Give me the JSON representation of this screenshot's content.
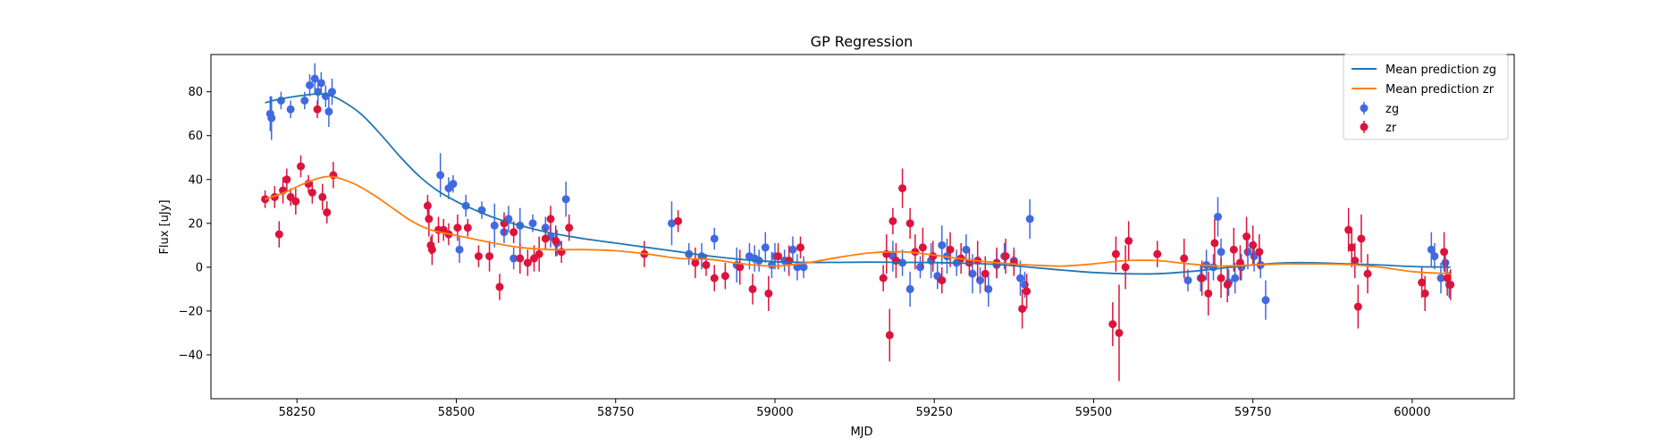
{
  "chart_data": {
    "type": "scatter",
    "title": "GP Regression",
    "xlabel": "MJD",
    "ylabel": "Flux [uJy]",
    "xlim": [
      58115,
      60160
    ],
    "ylim": [
      -60,
      97
    ],
    "xticks": [
      58250,
      58500,
      58750,
      59000,
      59250,
      59500,
      59750,
      60000
    ],
    "yticks": [
      -40,
      -20,
      0,
      20,
      40,
      60,
      80
    ],
    "grid": false,
    "legend_position": "top-right",
    "legend": [
      "Mean prediction zg",
      "Mean prediction zr",
      "zg",
      "zr"
    ],
    "colors": {
      "zg_line": "#1f77b4",
      "zr_line": "#ff7f0e",
      "zg_points": "#4169e1",
      "zr_points": "#dc143c"
    },
    "lines": [
      {
        "name": "Mean prediction zg",
        "color": "#1f77b4",
        "x": [
          58200,
          58220,
          58250,
          58280,
          58300,
          58320,
          58350,
          58380,
          58410,
          58440,
          58470,
          58500,
          58530,
          58560,
          58600,
          58650,
          58700,
          58750,
          58800,
          58850,
          58900,
          58950,
          59000,
          59050,
          59100,
          59150,
          59200,
          59250,
          59300,
          59350,
          59400,
          59450,
          59500,
          59550,
          59600,
          59650,
          59700,
          59750,
          59800,
          59850,
          59900,
          59950,
          60000,
          60060
        ],
        "y": [
          75,
          76.5,
          78,
          79,
          78.5,
          76,
          70,
          61,
          51,
          42,
          35,
          30,
          26,
          22.5,
          19,
          15.5,
          13,
          11,
          9,
          7,
          5,
          3.5,
          2.5,
          2.2,
          2.2,
          2.3,
          2.2,
          2.1,
          1.8,
          1.2,
          0,
          -1.3,
          -2.4,
          -3,
          -3,
          -2,
          -0.5,
          1,
          2,
          2,
          1.5,
          1,
          0.3,
          0
        ]
      },
      {
        "name": "Mean prediction zr",
        "color": "#ff7f0e",
        "x": [
          58200,
          58230,
          58260,
          58290,
          58310,
          58340,
          58370,
          58400,
          58430,
          58460,
          58500,
          58550,
          58600,
          58650,
          58700,
          58750,
          58800,
          58850,
          58900,
          58950,
          59000,
          59050,
          59100,
          59150,
          59200,
          59250,
          59300,
          59350,
          59400,
          59450,
          59500,
          59550,
          59600,
          59650,
          59700,
          59750,
          59800,
          59850,
          59900,
          59950,
          60000,
          60060
        ],
        "y": [
          31,
          34,
          38,
          41,
          41,
          38,
          33,
          27,
          21,
          17,
          14.5,
          11.5,
          9,
          8,
          8,
          7.5,
          6,
          4,
          3.5,
          1.5,
          0.5,
          2,
          4.5,
          6.5,
          7,
          5.5,
          3.5,
          2,
          1,
          0.5,
          1.5,
          3,
          3,
          1.5,
          0.5,
          1,
          1.5,
          1.5,
          1.2,
          0,
          -2,
          -3
        ]
      }
    ],
    "series": [
      {
        "name": "zg",
        "color": "#4169e1",
        "x": [
          58208,
          58210,
          58225,
          58240,
          58262,
          58270,
          58278,
          58283,
          58288,
          58295,
          58300,
          58305,
          58475,
          58488,
          58495,
          58505,
          58515,
          58540,
          58560,
          58575,
          58582,
          58590,
          58600,
          58620,
          58640,
          58648,
          58658,
          58672,
          58838,
          58865,
          58885,
          58905,
          58940,
          58960,
          58968,
          58975,
          58985,
          58995,
          59000,
          59015,
          59028,
          59035,
          59045,
          59185,
          59200,
          59212,
          59228,
          59245,
          59255,
          59262,
          59270,
          59285,
          59300,
          59310,
          59322,
          59335,
          59348,
          59360,
          59375,
          59385,
          59392,
          59400,
          59648,
          59668,
          59677,
          59688,
          59695,
          59700,
          59712,
          59722,
          59732,
          59742,
          59752,
          59762,
          59770,
          60030,
          60035,
          60045,
          60052,
          60058
        ],
        "y": [
          70,
          68,
          76,
          72,
          76,
          83,
          86,
          80,
          84,
          78,
          71,
          80,
          42,
          36,
          38,
          8,
          28,
          26,
          19,
          16,
          22,
          4,
          19,
          20,
          18,
          14,
          11,
          31,
          20,
          6,
          5,
          13,
          1,
          5,
          4,
          3,
          9,
          1,
          5,
          3,
          8,
          0,
          0,
          5,
          2,
          -10,
          0,
          3,
          -4,
          10,
          5,
          2,
          8,
          -3,
          -6,
          -10,
          1,
          5,
          3,
          -5,
          -8,
          22,
          -6,
          -5,
          1,
          0,
          23,
          7,
          -7,
          -5,
          0,
          7,
          5,
          1,
          -15,
          8,
          5,
          -5,
          2,
          -8
        ],
        "err": [
          8,
          10,
          4,
          4,
          4,
          5,
          7,
          6,
          5,
          5,
          7,
          6,
          10,
          5,
          4,
          6,
          5,
          4,
          10,
          5,
          6,
          5,
          8,
          4,
          5,
          5,
          6,
          8,
          10,
          5,
          6,
          5,
          8,
          6,
          6,
          5,
          7,
          6,
          6,
          5,
          6,
          6,
          5,
          7,
          6,
          8,
          5,
          8,
          6,
          9,
          8,
          6,
          7,
          9,
          6,
          8,
          6,
          6,
          6,
          8,
          6,
          9,
          5,
          6,
          7,
          6,
          9,
          6,
          6,
          7,
          6,
          8,
          7,
          6,
          9,
          8,
          6,
          7,
          5,
          6
        ]
      },
      {
        "name": "zr",
        "color": "#dc143c",
        "x": [
          58200,
          58215,
          58222,
          58228,
          58234,
          58240,
          58248,
          58256,
          58268,
          58274,
          58282,
          58290,
          58297,
          58307,
          58455,
          58457,
          58460,
          58462,
          58472,
          58480,
          58488,
          58502,
          58518,
          58535,
          58552,
          58568,
          58575,
          58590,
          58600,
          58612,
          58622,
          58630,
          58640,
          58648,
          58656,
          58665,
          58677,
          58795,
          58848,
          58875,
          58892,
          58905,
          58922,
          58945,
          58965,
          58990,
          59005,
          59022,
          59040,
          59170,
          59175,
          59180,
          59185,
          59190,
          59200,
          59212,
          59220,
          59232,
          59248,
          59262,
          59275,
          59292,
          59305,
          59318,
          59330,
          59348,
          59362,
          59375,
          59388,
          59395,
          59530,
          59535,
          59540,
          59550,
          59555,
          59600,
          59642,
          59670,
          59680,
          59690,
          59700,
          59710,
          59720,
          59730,
          59740,
          59750,
          59760,
          59900,
          59905,
          59910,
          59915,
          59920,
          59930,
          60015,
          60020,
          60050,
          60055,
          60060
        ],
        "y": [
          31,
          32,
          15,
          35,
          40,
          32,
          30,
          46,
          38,
          34,
          72,
          32,
          25,
          42,
          28,
          22,
          10,
          8,
          17,
          17,
          15,
          18,
          18,
          5,
          5,
          -9,
          20,
          16,
          4,
          2,
          4,
          6,
          13,
          22,
          12,
          7,
          18,
          6,
          21,
          2,
          1,
          -5,
          -4,
          0,
          -10,
          -12,
          5,
          3,
          9,
          -5,
          6,
          -31,
          21,
          3,
          36,
          20,
          7,
          9,
          5,
          -6,
          8,
          4,
          2,
          3,
          -3,
          2,
          5,
          2,
          -19,
          -11,
          -26,
          6,
          -30,
          0,
          12,
          6,
          4,
          -5,
          -12,
          11,
          -5,
          -8,
          8,
          2,
          14,
          10,
          7,
          17,
          9,
          3,
          -18,
          13,
          -3,
          -7,
          -12,
          7,
          -5,
          -8
        ],
        "err": [
          4,
          5,
          6,
          6,
          5,
          4,
          6,
          5,
          4,
          5,
          4,
          6,
          5,
          6,
          5,
          8,
          4,
          7,
          6,
          5,
          5,
          6,
          4,
          5,
          7,
          6,
          5,
          5,
          7,
          6,
          6,
          8,
          5,
          6,
          7,
          5,
          6,
          6,
          5,
          7,
          5,
          6,
          6,
          8,
          7,
          8,
          6,
          7,
          5,
          6,
          9,
          12,
          6,
          8,
          9,
          7,
          8,
          9,
          7,
          6,
          8,
          7,
          6,
          9,
          8,
          7,
          8,
          6,
          9,
          8,
          10,
          8,
          22,
          10,
          9,
          6,
          9,
          8,
          10,
          11,
          9,
          8,
          10,
          8,
          9,
          9,
          8,
          10,
          9,
          8,
          10,
          11,
          9,
          7,
          8,
          9,
          8,
          7
        ]
      }
    ]
  }
}
